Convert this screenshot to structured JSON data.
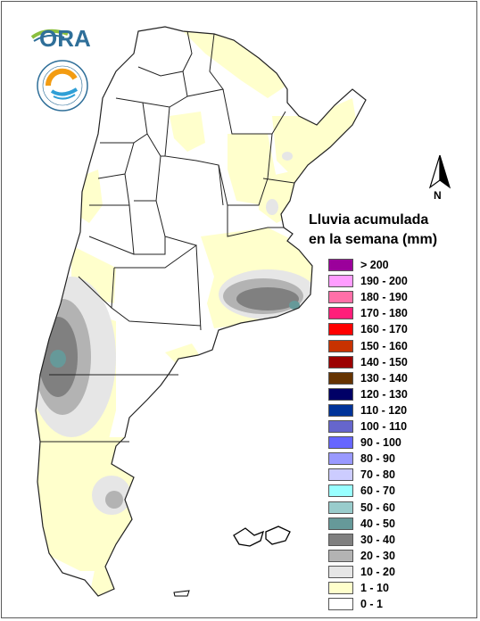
{
  "brand": {
    "wordmark": "ORA"
  },
  "legend": {
    "title_line1": "Lluvia acumulada",
    "title_line2": "en la semana (mm)",
    "items": [
      {
        "label": "> 200",
        "color": "#9b009b"
      },
      {
        "label": "190 - 200",
        "color": "#ff9cff"
      },
      {
        "label": "180 - 190",
        "color": "#ff6fa8"
      },
      {
        "label": "170 - 180",
        "color": "#ff1e7a"
      },
      {
        "label": "160 - 170",
        "color": "#ff0000"
      },
      {
        "label": "150 - 160",
        "color": "#c83200"
      },
      {
        "label": "140 - 150",
        "color": "#9c0000"
      },
      {
        "label": "130 - 140",
        "color": "#663300"
      },
      {
        "label": "120 - 130",
        "color": "#000066"
      },
      {
        "label": "110 - 120",
        "color": "#003399"
      },
      {
        "label": "100 - 110",
        "color": "#6666cc"
      },
      {
        "label": "90 - 100",
        "color": "#6666ff"
      },
      {
        "label": "80 - 90",
        "color": "#9999ff"
      },
      {
        "label": "70 - 80",
        "color": "#ccccff"
      },
      {
        "label": "60 - 70",
        "color": "#99ffff"
      },
      {
        "label": "50 - 60",
        "color": "#99cccc"
      },
      {
        "label": "40 - 50",
        "color": "#669999"
      },
      {
        "label": "30 - 40",
        "color": "#808080"
      },
      {
        "label": "20 - 30",
        "color": "#b3b3b3"
      },
      {
        "label": "10 - 20",
        "color": "#e6e6e6"
      },
      {
        "label": "1 - 10",
        "color": "#ffffcc"
      },
      {
        "label": "0 - 1",
        "color": "#ffffff"
      }
    ]
  },
  "north_arrow": {
    "label": "N"
  },
  "colors": {
    "border": "#5a5a5a",
    "province_line": "#222222"
  }
}
